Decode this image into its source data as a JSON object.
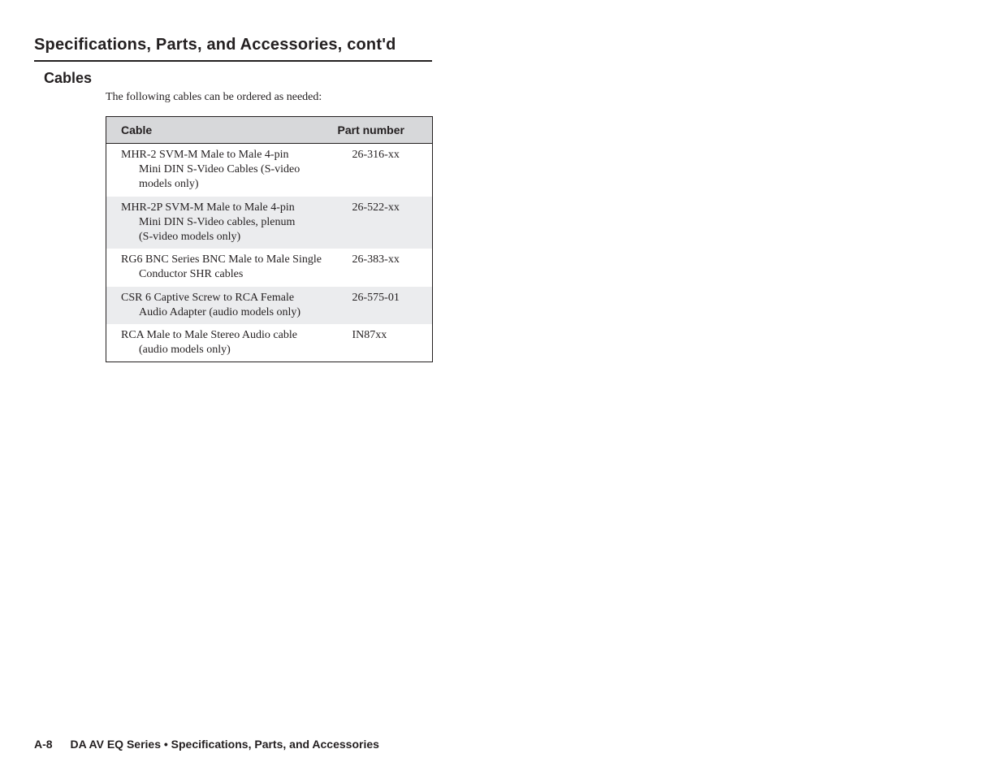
{
  "header": {
    "title": "Specifications, Parts, and Accessories, cont'd"
  },
  "section": {
    "title": "Cables",
    "intro": "The following cables can be ordered as needed:"
  },
  "table": {
    "columns": {
      "cable": "Cable",
      "part": "Part number"
    },
    "rows": [
      {
        "line1": "MHR-2 SVM-M Male to Male 4-pin",
        "cont1": "Mini DIN S-Video Cables (S-video",
        "cont2": "models only)",
        "part": "26-316-xx"
      },
      {
        "line1": "MHR-2P SVM-M Male to Male 4-pin",
        "cont1": "Mini DIN S-Video cables, plenum",
        "cont2": "(S-video models only)",
        "part": "26-522-xx"
      },
      {
        "line1": "RG6 BNC Series BNC Male to Male Single",
        "cont1": "Conductor SHR cables",
        "cont2": "",
        "part": "26-383-xx"
      },
      {
        "line1": "CSR 6 Captive Screw to RCA Female",
        "cont1": "Audio Adapter (audio models only)",
        "cont2": "",
        "part": "26-575-01"
      },
      {
        "line1": "RCA Male to Male Stereo Audio cable",
        "cont1": "(audio models only)",
        "cont2": "",
        "part": "IN87xx"
      }
    ]
  },
  "footer": {
    "pagenum": "A-8",
    "text": "DA AV EQ Series  •  Specifications, Parts, and Accessories"
  }
}
